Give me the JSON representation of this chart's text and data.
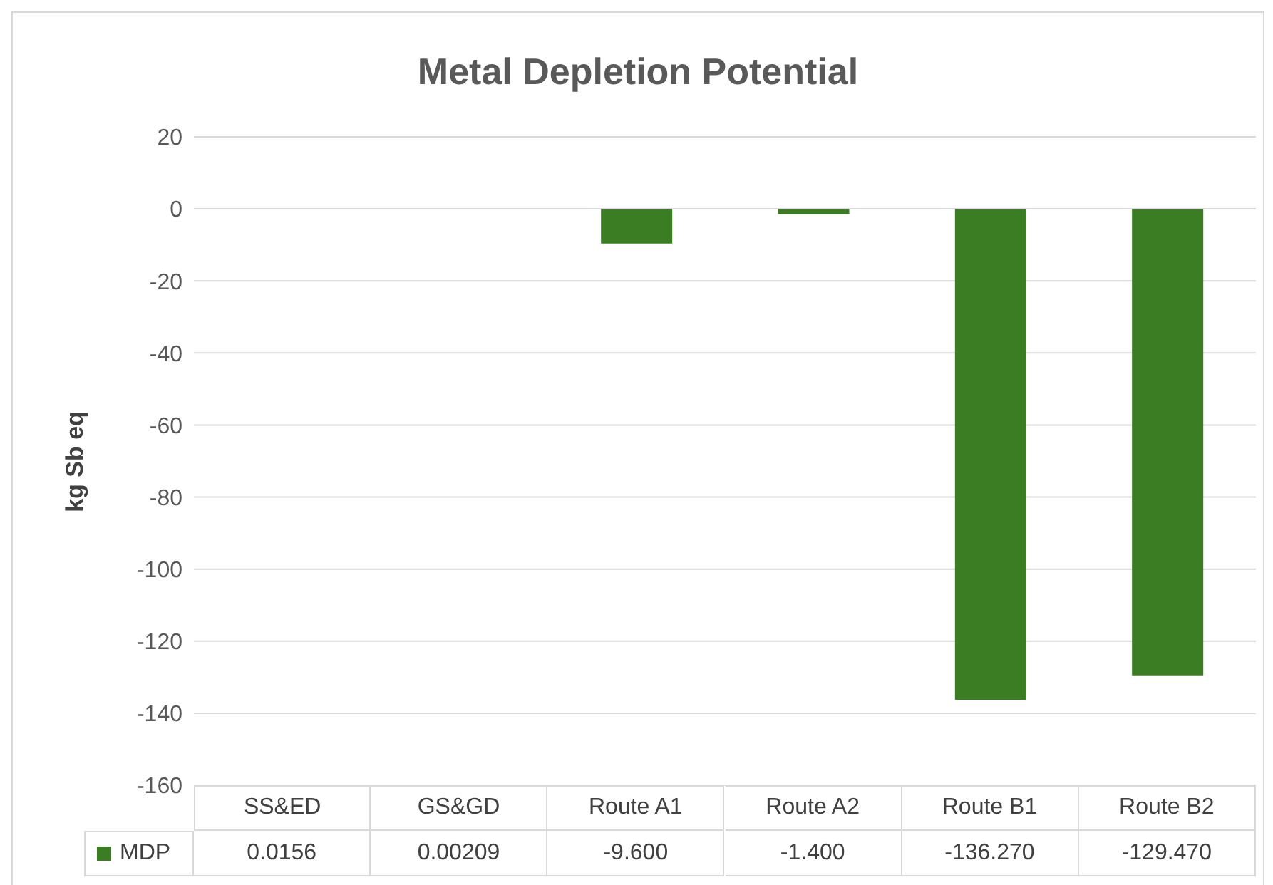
{
  "chart_data": {
    "type": "bar",
    "title": "Metal Depletion Potential",
    "ylabel": "kg Sb eq",
    "categories": [
      "SS&ED",
      "GS&GD",
      "Route A1",
      "Route A2",
      "Route B1",
      "Route B2"
    ],
    "series": [
      {
        "name": "MDP",
        "color": "#3a7d22",
        "values": [
          0.0156,
          0.00209,
          -9.6,
          -1.4,
          -136.27,
          -129.47
        ],
        "value_labels": [
          "0.0156",
          "0.00209",
          "-9.600",
          "-1.400",
          "-136.270",
          "-129.470"
        ]
      }
    ],
    "ylim": [
      -160,
      20
    ],
    "yticks": [
      -160,
      -140,
      -120,
      -100,
      -80,
      -60,
      -40,
      -20,
      0,
      20
    ],
    "grid": "y",
    "legend": "bottom"
  }
}
